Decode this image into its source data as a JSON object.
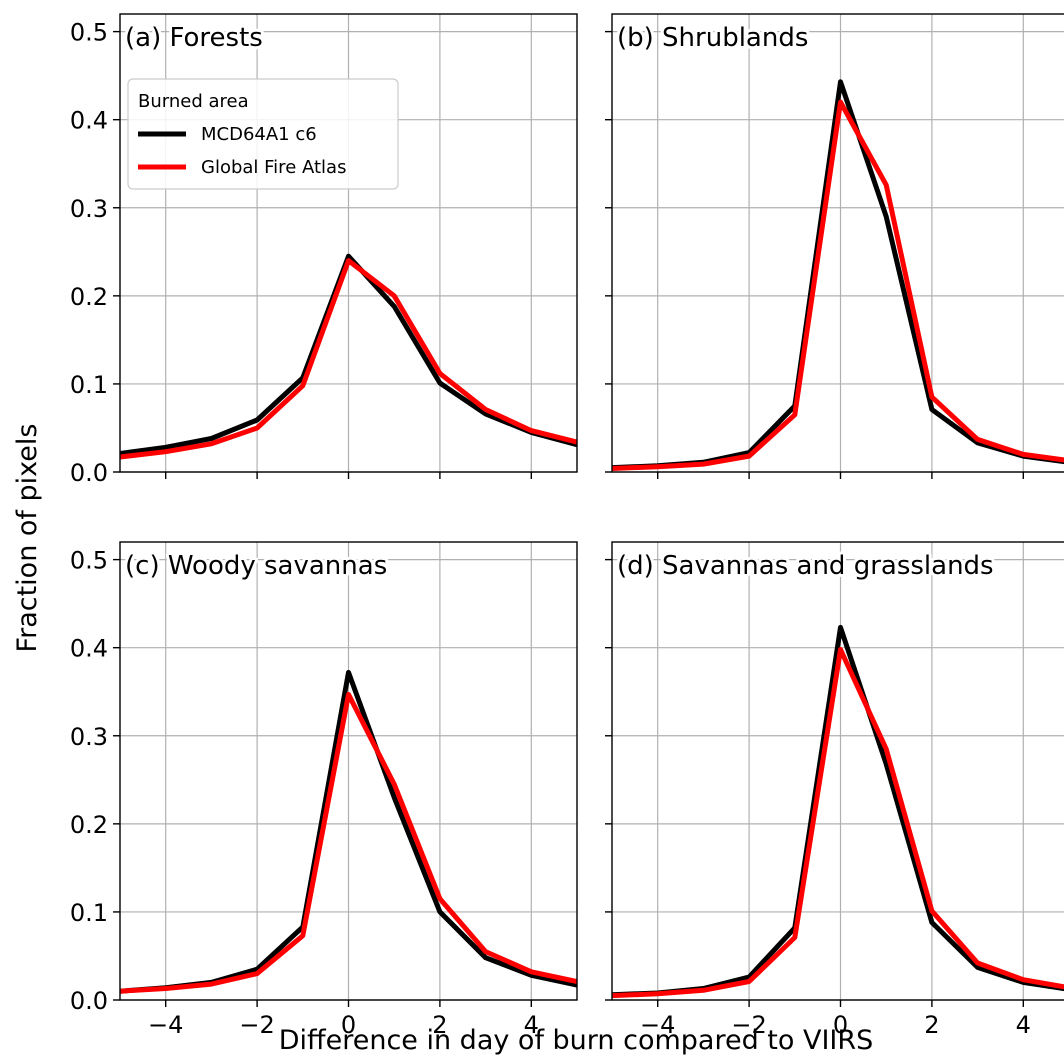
{
  "figure": {
    "xlabel": "Difference in day of burn compared to VIIRS",
    "ylabel": "Fraction of pixels"
  },
  "legend": {
    "title": "Burned area",
    "entries": [
      {
        "label": "MCD64A1 c6",
        "color": "#000000"
      },
      {
        "label": "Global Fire Atlas",
        "color": "#ff0000"
      }
    ]
  },
  "x_ticks": [
    "−4",
    "−2",
    "0",
    "2",
    "4"
  ],
  "y_ticks": [
    "0.0",
    "0.1",
    "0.2",
    "0.3",
    "0.4",
    "0.5"
  ],
  "chart_data": [
    {
      "type": "line",
      "title": "(a) Forests",
      "xlim": [
        -5,
        5
      ],
      "ylim": [
        0,
        0.52
      ],
      "grid": true,
      "legend": "top-left",
      "x": [
        -5,
        -4,
        -3,
        -2,
        -1,
        0,
        1,
        2,
        3,
        4,
        5
      ],
      "series": [
        {
          "name": "MCD64A1 c6",
          "color": "#000000",
          "values": [
            0.021,
            0.028,
            0.038,
            0.059,
            0.107,
            0.245,
            0.188,
            0.101,
            0.066,
            0.045,
            0.031
          ]
        },
        {
          "name": "Global Fire Atlas",
          "color": "#ff0000",
          "values": [
            0.017,
            0.023,
            0.032,
            0.05,
            0.098,
            0.24,
            0.2,
            0.112,
            0.071,
            0.047,
            0.034
          ]
        }
      ]
    },
    {
      "type": "line",
      "title": "(b) Shrublands",
      "xlim": [
        -5,
        5
      ],
      "ylim": [
        0,
        0.52
      ],
      "grid": true,
      "x": [
        -5,
        -4,
        -3,
        -2,
        -1,
        0,
        1,
        2,
        3,
        4,
        5
      ],
      "series": [
        {
          "name": "MCD64A1 c6",
          "color": "#000000",
          "values": [
            0.005,
            0.007,
            0.011,
            0.022,
            0.075,
            0.443,
            0.29,
            0.071,
            0.033,
            0.018,
            0.011
          ]
        },
        {
          "name": "Global Fire Atlas",
          "color": "#ff0000",
          "values": [
            0.004,
            0.006,
            0.009,
            0.018,
            0.065,
            0.42,
            0.326,
            0.085,
            0.037,
            0.02,
            0.013
          ]
        }
      ]
    },
    {
      "type": "line",
      "title": "(c) Woody savannas",
      "xlim": [
        -5,
        5
      ],
      "ylim": [
        0,
        0.52
      ],
      "grid": true,
      "x": [
        -5,
        -4,
        -3,
        -2,
        -1,
        0,
        1,
        2,
        3,
        4,
        5
      ],
      "series": [
        {
          "name": "MCD64A1 c6",
          "color": "#000000",
          "values": [
            0.01,
            0.014,
            0.02,
            0.035,
            0.083,
            0.372,
            0.23,
            0.1,
            0.048,
            0.028,
            0.017
          ]
        },
        {
          "name": "Global Fire Atlas",
          "color": "#ff0000",
          "values": [
            0.01,
            0.013,
            0.018,
            0.03,
            0.073,
            0.347,
            0.245,
            0.115,
            0.055,
            0.032,
            0.021
          ]
        }
      ]
    },
    {
      "type": "line",
      "title": "(d) Savannas and grasslands",
      "xlim": [
        -5,
        5
      ],
      "ylim": [
        0,
        0.52
      ],
      "grid": true,
      "x": [
        -5,
        -4,
        -3,
        -2,
        -1,
        0,
        1,
        2,
        3,
        4,
        5
      ],
      "series": [
        {
          "name": "MCD64A1 c6",
          "color": "#000000",
          "values": [
            0.006,
            0.008,
            0.013,
            0.026,
            0.082,
            0.423,
            0.268,
            0.088,
            0.037,
            0.02,
            0.012
          ]
        },
        {
          "name": "Global Fire Atlas",
          "color": "#ff0000",
          "values": [
            0.005,
            0.007,
            0.011,
            0.021,
            0.071,
            0.398,
            0.285,
            0.101,
            0.042,
            0.023,
            0.014
          ]
        }
      ]
    }
  ]
}
